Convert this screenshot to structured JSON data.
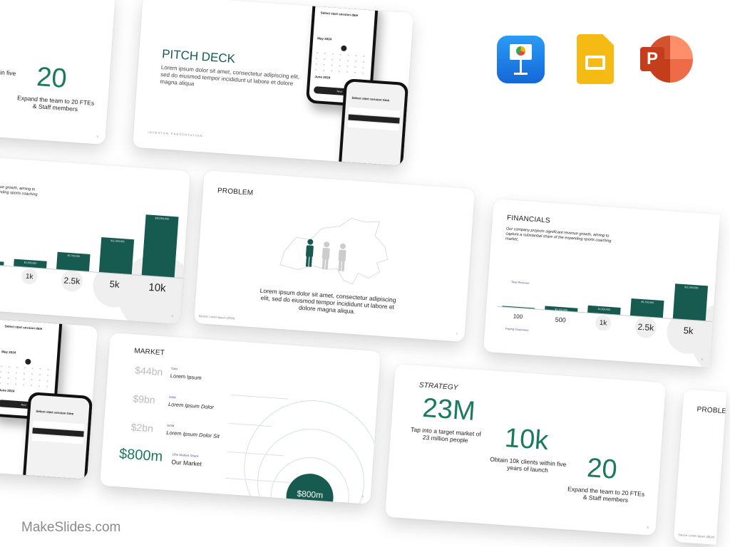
{
  "watermark": "MakeSlides.com",
  "apps": [
    {
      "name": "Keynote"
    },
    {
      "name": "Google Slides"
    },
    {
      "name": "PowerPoint"
    }
  ],
  "colors": {
    "accent": "#175a50",
    "number_green": "#1b7a5c",
    "label_purple": "#55588f"
  },
  "pitch": {
    "title": "PITCH DECK",
    "body": "Lorem ipsum dolor sit amet, consectetur adipiscing elit, sed do eiusmod tempor incididunt ut labore et dolore magna aliqua",
    "footer": "INVESTOR PRESENTATION",
    "phone1": {
      "heading": "Select start session date",
      "month1": "May 2024",
      "month2": "June 2024",
      "button": "Next"
    },
    "phone2": {
      "heading": "Select start session time"
    }
  },
  "problem": {
    "title": "PROBLEM",
    "body": "Lorem ipsum dolor sit amet, consectetur adipiscing elit, sed do eiusmod tempor incididunt ut labore et dolore magna aliqua.",
    "source": "Source: Lorem Ipsum (2024)",
    "page": "7"
  },
  "financials": {
    "title": "FINANCIALS",
    "body": "Our company projects significant revenue growth, aiming to capture a substantial share of the expanding sports coaching market.",
    "revenue_label": "Total Revenue",
    "customers_label": "Paying Customers",
    "page": "9",
    "categories": [
      "100",
      "500",
      "1k",
      "2.5k",
      "5k",
      "10k"
    ],
    "revenue": [
      230000,
      1150000,
      2300000,
      5750000,
      11500000,
      20000000
    ],
    "revenue_labels": [
      "$230,000",
      "$1,150,000",
      "$2,300,000",
      "$5,750,000",
      "$11,500,000",
      "$20,000,000"
    ]
  },
  "market": {
    "title": "MARKET",
    "rows": [
      {
        "value": "$44bn",
        "tag": "TAM",
        "name": "Lorem Ipsum"
      },
      {
        "value": "$9bn",
        "tag": "SAM",
        "name": "Lorem Ipsum Dolor"
      },
      {
        "value": "$2bn",
        "tag": "SOM",
        "name": "Lorem Ipsum Dolor Sit"
      },
      {
        "value": "$800m",
        "tag": "10% Market Share",
        "name": "Our Market"
      }
    ],
    "circle_label": "$800m",
    "page": "8"
  },
  "strategy": {
    "title": "STRATEGY",
    "page": "6",
    "items": [
      {
        "value": "23M",
        "text": "Tap into a target market of 23 million people"
      },
      {
        "value": "10k",
        "text": "Obtain 10k clients within five years of launch"
      },
      {
        "value": "20",
        "text": "Expand the team to 20 FTEs & Staff members"
      }
    ]
  }
}
